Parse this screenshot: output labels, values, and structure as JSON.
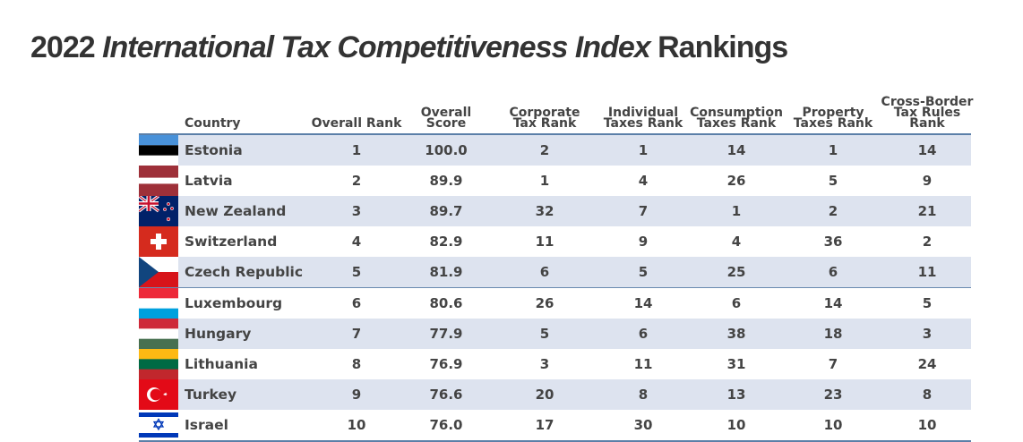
{
  "title": {
    "year": "2022",
    "italic": "International Tax Competitiveness Index",
    "suffix": "Rankings"
  },
  "columns": [
    {
      "key": "country",
      "line1": "",
      "line2": "",
      "line3": "Country"
    },
    {
      "key": "overall_rank",
      "line1": "",
      "line2": "",
      "line3": "Overall Rank"
    },
    {
      "key": "overall_score",
      "line1": "",
      "line2": "Overall",
      "line3": "Score"
    },
    {
      "key": "corporate",
      "line1": "",
      "line2": "Corporate",
      "line3": "Tax Rank"
    },
    {
      "key": "individual",
      "line1": "",
      "line2": "Individual",
      "line3": "Taxes Rank"
    },
    {
      "key": "consumption",
      "line1": "",
      "line2": "Consumption",
      "line3": "Taxes Rank"
    },
    {
      "key": "property",
      "line1": "",
      "line2": "Property",
      "line3": "Taxes Rank"
    },
    {
      "key": "cross_border",
      "line1": "Cross-Border",
      "line2": "Tax Rules",
      "line3": "Rank"
    }
  ],
  "rows": [
    {
      "country": "Estonia",
      "flag": "estonia-flag",
      "overall_rank": "1",
      "overall_score": "100.0",
      "corporate": "2",
      "individual": "1",
      "consumption": "14",
      "property": "1",
      "cross_border": "14"
    },
    {
      "country": "Latvia",
      "flag": "latvia-flag",
      "overall_rank": "2",
      "overall_score": "89.9",
      "corporate": "1",
      "individual": "4",
      "consumption": "26",
      "property": "5",
      "cross_border": "9"
    },
    {
      "country": "New Zealand",
      "flag": "new-zealand-flag",
      "overall_rank": "3",
      "overall_score": "89.7",
      "corporate": "32",
      "individual": "7",
      "consumption": "1",
      "property": "2",
      "cross_border": "21"
    },
    {
      "country": "Switzerland",
      "flag": "switzerland-flag",
      "overall_rank": "4",
      "overall_score": "82.9",
      "corporate": "11",
      "individual": "9",
      "consumption": "4",
      "property": "36",
      "cross_border": "2"
    },
    {
      "country": "Czech Republic",
      "flag": "czech-republic-flag",
      "overall_rank": "5",
      "overall_score": "81.9",
      "corporate": "6",
      "individual": "5",
      "consumption": "25",
      "property": "6",
      "cross_border": "11"
    },
    {
      "country": "Luxembourg",
      "flag": "luxembourg-flag",
      "overall_rank": "6",
      "overall_score": "80.6",
      "corporate": "26",
      "individual": "14",
      "consumption": "6",
      "property": "14",
      "cross_border": "5"
    },
    {
      "country": "Hungary",
      "flag": "hungary-flag",
      "overall_rank": "7",
      "overall_score": "77.9",
      "corporate": "5",
      "individual": "6",
      "consumption": "38",
      "property": "18",
      "cross_border": "3"
    },
    {
      "country": "Lithuania",
      "flag": "lithuania-flag",
      "overall_rank": "8",
      "overall_score": "76.9",
      "corporate": "3",
      "individual": "11",
      "consumption": "31",
      "property": "7",
      "cross_border": "24"
    },
    {
      "country": "Turkey",
      "flag": "turkey-flag",
      "overall_rank": "9",
      "overall_score": "76.6",
      "corporate": "20",
      "individual": "8",
      "consumption": "13",
      "property": "23",
      "cross_border": "8"
    },
    {
      "country": "Israel",
      "flag": "israel-flag",
      "overall_rank": "10",
      "overall_score": "76.0",
      "corporate": "17",
      "individual": "30",
      "consumption": "10",
      "property": "10",
      "cross_border": "10"
    }
  ],
  "colors": {
    "shaded_row": "#dde3ef",
    "rule": "#5b7fa8",
    "text": "#444444"
  }
}
